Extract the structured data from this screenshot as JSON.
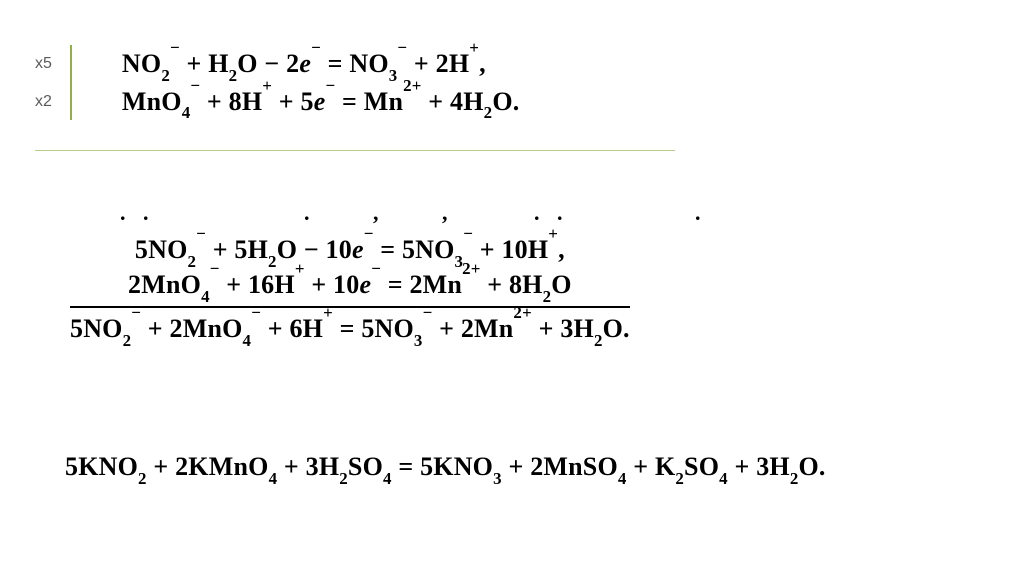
{
  "colors": {
    "bg": "#ffffff",
    "text": "#000000",
    "multiplier_text": "#5b5b5b",
    "accent_rule": "#8fb04a",
    "under_rule": "#b9cf85",
    "sum_rule": "#000000"
  },
  "typography": {
    "equation_family": "Times New Roman",
    "equation_size_pt": 20,
    "equation_weight": 600,
    "multiplier_family": "Arial",
    "multiplier_size_pt": 12
  },
  "half_reactions": {
    "multipliers": [
      "x5",
      "x2"
    ],
    "lines_html": [
      "NO<sub>2</sub><sup>&#8722;</sup>&nbsp;+&nbsp;H<sub>2</sub>O&nbsp;&#8722;&nbsp;2<i>e</i><sup>&#8722;</sup>&nbsp;=&nbsp;NO<sub>3</sub><sup>&#8722;</sup>&nbsp;+&nbsp;2H<sup>+</sup>,",
      "MnO<sub>4</sub><sup>&#8722;</sup>&nbsp;+&nbsp;8H<sup>+</sup>&nbsp;+&nbsp;5<i>e</i><sup>&#8722;</sup>&nbsp;=&nbsp;Mn<sup>2+</sup>&nbsp;+&nbsp;4H<sub>2</sub>O."
    ]
  },
  "fragment_dots": ". .  &nbsp; &nbsp; &nbsp; &nbsp; &nbsp; &nbsp; . &nbsp; &nbsp; , &nbsp; &nbsp; , &nbsp; &nbsp; &nbsp; . . &nbsp; &nbsp; &nbsp; &nbsp; &nbsp; .",
  "combined": {
    "upper_html": [
      "5NO<sub>2</sub><sup>&#8722;</sup>&nbsp;+&nbsp;5H<sub>2</sub>O&nbsp;&#8722;&nbsp;10<i>e</i><sup>&#8722;</sup>&nbsp;=&nbsp;5NO<sub>3</sub><sup>&#8722;</sup>&nbsp;+&nbsp;10H<sup>+</sup>,",
      "2MnO<sub>4</sub><sup>&#8722;</sup>&nbsp;+&nbsp;16H<sup>+</sup>&nbsp;+&nbsp;10<i>e</i><sup>&#8722;</sup>&nbsp;=&nbsp;2Mn<sup>2+</sup>&nbsp;+&nbsp;8H<sub>2</sub>O"
    ],
    "sum_html": "5NO<sub>2</sub><sup>&#8722;</sup>&nbsp;+&nbsp;2MnO<sub>4</sub><sup>&#8722;</sup>&nbsp;+&nbsp;6H<sup>+</sup>&nbsp;=&nbsp;5NO<sub>3</sub><sup>&#8722;</sup>&nbsp;+&nbsp;2Mn<sup>2+</sup>&nbsp;+&nbsp;3H<sub>2</sub>O."
  },
  "final_html": "5KNO<sub>2</sub>&nbsp;+&nbsp;2KMnO<sub>4</sub>&nbsp;+&nbsp;3H<sub>2</sub>SO<sub>4</sub>&nbsp;=&nbsp;5KNO<sub>3</sub>&nbsp;+&nbsp;2MnSO<sub>4</sub>&nbsp;+&nbsp;K<sub>2</sub>SO<sub>4</sub>&nbsp;+&nbsp;3H<sub>2</sub>O."
}
